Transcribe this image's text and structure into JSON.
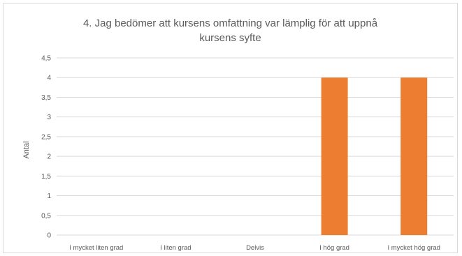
{
  "chart_data": {
    "type": "bar",
    "title_lines": [
      "4. Jag bedömer att kursens omfattning var lämplig för att uppnå",
      "kursens syfte"
    ],
    "xlabel": "",
    "ylabel": "Antal",
    "categories": [
      "I mycket liten grad",
      "I liten grad",
      "Delvis",
      "I hög grad",
      "I mycket hög grad"
    ],
    "values": [
      0,
      0,
      0,
      4,
      4
    ],
    "ylim": [
      0,
      4.5
    ],
    "yticks": [
      "0",
      "0,5",
      "1",
      "1,5",
      "2",
      "2,5",
      "3",
      "3,5",
      "4",
      "4,5"
    ],
    "grid": true,
    "bar_color": "#ED7D31"
  }
}
